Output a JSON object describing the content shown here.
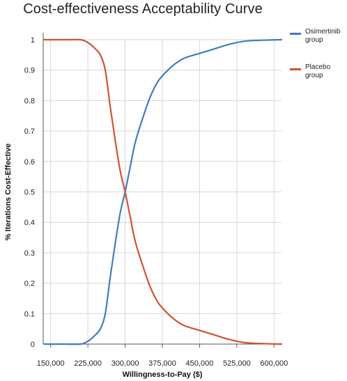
{
  "chart_data": {
    "type": "line",
    "title": "Cost-effectiveness Acceptability Curve",
    "xlabel": "Willingness-to-Pay ($)",
    "ylabel": "% Iterations Cost-Effective",
    "xlim": [
      135000,
      615000
    ],
    "ylim": [
      0,
      1
    ],
    "x_ticks": [
      150000,
      225000,
      300000,
      375000,
      450000,
      525000,
      600000
    ],
    "x_tick_labels": [
      "150,000",
      "225,000",
      "300,000",
      "375,000",
      "450,000",
      "525,000",
      "600,000"
    ],
    "y_ticks": [
      0,
      0.1,
      0.2,
      0.3,
      0.4,
      0.5,
      0.6,
      0.7,
      0.8,
      0.9,
      1
    ],
    "y_tick_labels": [
      "0",
      "0.1",
      "0.2",
      "0.3",
      "0.4",
      "0.5",
      "0.6",
      "0.7",
      "0.8",
      "0.9",
      "1"
    ],
    "grid": true,
    "legend_position": "right",
    "series": [
      {
        "name": "Osimertinib group",
        "color": "#3f7dc1",
        "points": [
          [
            137000,
            0.0
          ],
          [
            180000,
            0.0
          ],
          [
            210000,
            0.0
          ],
          [
            220000,
            0.005
          ],
          [
            230000,
            0.015
          ],
          [
            240000,
            0.03
          ],
          [
            250000,
            0.05
          ],
          [
            260000,
            0.1
          ],
          [
            270000,
            0.22
          ],
          [
            280000,
            0.33
          ],
          [
            290000,
            0.43
          ],
          [
            300000,
            0.5
          ],
          [
            310000,
            0.58
          ],
          [
            320000,
            0.66
          ],
          [
            335000,
            0.74
          ],
          [
            350000,
            0.81
          ],
          [
            365000,
            0.86
          ],
          [
            380000,
            0.89
          ],
          [
            400000,
            0.92
          ],
          [
            420000,
            0.94
          ],
          [
            450000,
            0.955
          ],
          [
            480000,
            0.97
          ],
          [
            510000,
            0.985
          ],
          [
            540000,
            0.995
          ],
          [
            570000,
            0.998
          ],
          [
            615000,
            1.0
          ]
        ]
      },
      {
        "name": "Placebo group",
        "color": "#d2532f",
        "points": [
          [
            137000,
            1.0
          ],
          [
            180000,
            1.0
          ],
          [
            210000,
            1.0
          ],
          [
            220000,
            0.995
          ],
          [
            230000,
            0.985
          ],
          [
            240000,
            0.97
          ],
          [
            250000,
            0.95
          ],
          [
            260000,
            0.9
          ],
          [
            270000,
            0.78
          ],
          [
            280000,
            0.67
          ],
          [
            290000,
            0.57
          ],
          [
            300000,
            0.5
          ],
          [
            310000,
            0.42
          ],
          [
            320000,
            0.34
          ],
          [
            335000,
            0.26
          ],
          [
            350000,
            0.19
          ],
          [
            365000,
            0.14
          ],
          [
            380000,
            0.11
          ],
          [
            400000,
            0.08
          ],
          [
            420000,
            0.06
          ],
          [
            450000,
            0.045
          ],
          [
            480000,
            0.03
          ],
          [
            510000,
            0.015
          ],
          [
            540000,
            0.005
          ],
          [
            570000,
            0.002
          ],
          [
            615000,
            0.0
          ]
        ]
      }
    ]
  }
}
